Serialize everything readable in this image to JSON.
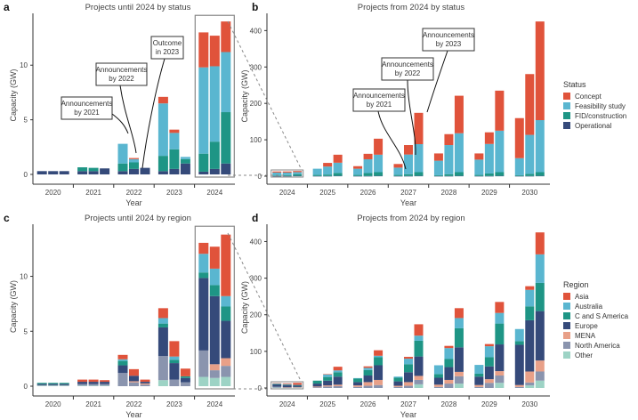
{
  "chart_data": [
    {
      "id": "a",
      "type": "bar",
      "stacked": true,
      "title": "Projects until 2024 by status",
      "xlabel": "Year",
      "ylabel": "Capacity (GW)",
      "ylim": [
        0,
        14.5
      ],
      "yticks": [
        0,
        5,
        10
      ],
      "categories": [
        "2020",
        "2021",
        "2022",
        "2023",
        "2024"
      ],
      "bars_per_category": 3,
      "stack_order": [
        "Operational",
        "FID/construction",
        "Feasibility study",
        "Concept"
      ],
      "bars": [
        {
          "category": "2020",
          "values": [
            0.3,
            0,
            0,
            0
          ]
        },
        {
          "category": "2020",
          "values": [
            0.3,
            0,
            0,
            0
          ]
        },
        {
          "category": "2020",
          "values": [
            0.3,
            0,
            0,
            0
          ]
        },
        {
          "category": "2021",
          "values": [
            0.3,
            0.35,
            0,
            0
          ]
        },
        {
          "category": "2021",
          "values": [
            0.3,
            0.3,
            0,
            0
          ]
        },
        {
          "category": "2021",
          "values": [
            0.55,
            0,
            0,
            0
          ]
        },
        {
          "category": "2022",
          "values": [
            0.3,
            0.7,
            1.8,
            0
          ]
        },
        {
          "category": "2022",
          "values": [
            0.5,
            0.6,
            0.3,
            0.1
          ]
        },
        {
          "category": "2022",
          "values": [
            0.6,
            0,
            0,
            0
          ]
        },
        {
          "category": "2023",
          "values": [
            0.3,
            1.4,
            4.8,
            0.6
          ]
        },
        {
          "category": "2023",
          "values": [
            0.5,
            1.8,
            1.5,
            0.3
          ]
        },
        {
          "category": "2023",
          "values": [
            1.0,
            0.4,
            0.2,
            0
          ]
        },
        {
          "category": "2024",
          "values": [
            0.25,
            1.65,
            7.9,
            3.2
          ]
        },
        {
          "category": "2024",
          "values": [
            0.5,
            2.5,
            6.9,
            2.8
          ]
        },
        {
          "category": "2024",
          "values": [
            1.0,
            4.7,
            5.5,
            2.8
          ]
        }
      ],
      "annotations": [
        {
          "text": [
            "Announcements",
            "by 2021"
          ]
        },
        {
          "text": [
            "Announcements",
            "by 2022"
          ]
        },
        {
          "text": [
            "Outcome",
            "in 2023"
          ]
        }
      ]
    },
    {
      "id": "b",
      "type": "bar",
      "stacked": true,
      "title": "Projects from 2024 by status",
      "xlabel": "Year",
      "ylabel": "",
      "ylim": [
        0,
        440
      ],
      "yticks": [
        0,
        100,
        200,
        300,
        400
      ],
      "categories": [
        "2024",
        "2025",
        "2026",
        "2027",
        "2028",
        "2029",
        "2030"
      ],
      "bars_per_category": 3,
      "stack_order": [
        "Operational",
        "FID/construction",
        "Feasibility study",
        "Concept"
      ],
      "bars": [
        {
          "category": "2024",
          "values": [
            0.3,
            1.7,
            8,
            3
          ]
        },
        {
          "category": "2024",
          "values": [
            0.5,
            2.5,
            7,
            3
          ]
        },
        {
          "category": "2024",
          "values": [
            1,
            4.7,
            5.5,
            3
          ]
        },
        {
          "category": "2025",
          "values": [
            0.5,
            3,
            17,
            0
          ]
        },
        {
          "category": "2025",
          "values": [
            0.5,
            4,
            22,
            10
          ]
        },
        {
          "category": "2025",
          "values": [
            1,
            8,
            28,
            22
          ]
        },
        {
          "category": "2026",
          "values": [
            0.5,
            3,
            17,
            7
          ]
        },
        {
          "category": "2026",
          "values": [
            0.5,
            8,
            38,
            15
          ]
        },
        {
          "category": "2026",
          "values": [
            1,
            10,
            48,
            44
          ]
        },
        {
          "category": "2027",
          "values": [
            0.5,
            3,
            20,
            10
          ]
        },
        {
          "category": "2027",
          "values": [
            0.5,
            5,
            54,
            26
          ]
        },
        {
          "category": "2027",
          "values": [
            1,
            10,
            77,
            86
          ]
        },
        {
          "category": "2028",
          "values": [
            0.5,
            2,
            40,
            20
          ]
        },
        {
          "category": "2028",
          "values": [
            0.5,
            5,
            80,
            30
          ]
        },
        {
          "category": "2028",
          "values": [
            1,
            10,
            107,
            103
          ]
        },
        {
          "category": "2029",
          "values": [
            0.5,
            3,
            42,
            17
          ]
        },
        {
          "category": "2029",
          "values": [
            0.5,
            7,
            81,
            32
          ]
        },
        {
          "category": "2029",
          "values": [
            1,
            10,
            114,
            110
          ]
        },
        {
          "category": "2030",
          "values": [
            0.5,
            2,
            47,
            110
          ]
        },
        {
          "category": "2030",
          "values": [
            0.5,
            6,
            107,
            167
          ]
        },
        {
          "category": "2030",
          "values": [
            1,
            10,
            143,
            271
          ]
        }
      ],
      "annotations": [
        {
          "text": [
            "Announcements",
            "by 2021"
          ]
        },
        {
          "text": [
            "Announcements",
            "by 2022"
          ]
        },
        {
          "text": [
            "Announcements",
            "by 2023"
          ]
        }
      ]
    },
    {
      "id": "c",
      "type": "bar",
      "stacked": true,
      "title": "Projects until 2024 by region",
      "xlabel": "Year",
      "ylabel": "Capacity (GW)",
      "ylim": [
        0,
        14.5
      ],
      "yticks": [
        0,
        5,
        10
      ],
      "categories": [
        "2020",
        "2021",
        "2022",
        "2023",
        "2024"
      ],
      "bars_per_category": 3,
      "stack_order": [
        "Other",
        "North America",
        "MENA",
        "Europe",
        "C and S America",
        "Australia",
        "Asia"
      ],
      "bars": [
        {
          "category": "2020",
          "values": [
            0.05,
            0.05,
            0,
            0.1,
            0.1,
            0,
            0
          ]
        },
        {
          "category": "2020",
          "values": [
            0.05,
            0.05,
            0,
            0.1,
            0.1,
            0,
            0
          ]
        },
        {
          "category": "2020",
          "values": [
            0.05,
            0.05,
            0,
            0.1,
            0.1,
            0,
            0
          ]
        },
        {
          "category": "2021",
          "values": [
            0.05,
            0.15,
            0,
            0.2,
            0,
            0,
            0.2
          ]
        },
        {
          "category": "2021",
          "values": [
            0.05,
            0.15,
            0,
            0.2,
            0,
            0,
            0.2
          ]
        },
        {
          "category": "2021",
          "values": [
            0.05,
            0.15,
            0,
            0.2,
            0,
            0,
            0.15
          ]
        },
        {
          "category": "2022",
          "values": [
            0,
            1.2,
            0,
            0.7,
            0.4,
            0.15,
            0.4
          ]
        },
        {
          "category": "2022",
          "values": [
            0,
            0.35,
            0.1,
            0.5,
            0,
            0,
            0.6
          ]
        },
        {
          "category": "2022",
          "values": [
            0,
            0.15,
            0.1,
            0.15,
            0,
            0,
            0.2
          ]
        },
        {
          "category": "2023",
          "values": [
            0.55,
            2.2,
            0,
            2.6,
            0.35,
            0.5,
            0.9
          ]
        },
        {
          "category": "2023",
          "values": [
            0,
            0.6,
            0,
            1.5,
            0.3,
            0.3,
            1.4
          ]
        },
        {
          "category": "2023",
          "values": [
            0,
            0.35,
            0,
            0.4,
            0.15,
            0,
            0.7
          ]
        },
        {
          "category": "2024",
          "values": [
            0.85,
            2.4,
            0,
            6.6,
            0.5,
            1.7,
            1.0
          ]
        },
        {
          "category": "2024",
          "values": [
            0.75,
            0.7,
            0.55,
            6.2,
            1.0,
            1.5,
            2.0
          ]
        },
        {
          "category": "2024",
          "values": [
            0.85,
            1.0,
            0.7,
            3.4,
            1.3,
            0.95,
            5.6
          ]
        }
      ]
    },
    {
      "id": "d",
      "type": "bar",
      "stacked": true,
      "title": "Projects from 2024 by region",
      "xlabel": "Year",
      "ylabel": "",
      "ylim": [
        0,
        440
      ],
      "yticks": [
        0,
        100,
        200,
        300,
        400
      ],
      "categories": [
        "2024",
        "2025",
        "2026",
        "2027",
        "2028",
        "2029",
        "2030"
      ],
      "bars_per_category": 3,
      "stack_order": [
        "Other",
        "North America",
        "MENA",
        "Europe",
        "C and S America",
        "Australia",
        "Asia"
      ],
      "bars": [
        {
          "category": "2024",
          "values": [
            1,
            2.5,
            0,
            6.5,
            0.5,
            1.5,
            1
          ]
        },
        {
          "category": "2024",
          "values": [
            0.8,
            0.7,
            0.5,
            6,
            1,
            1.5,
            2
          ]
        },
        {
          "category": "2024",
          "values": [
            0.9,
            1,
            0.7,
            3.5,
            1.3,
            1,
            5.5
          ]
        },
        {
          "category": "2025",
          "values": [
            0,
            2,
            2,
            8,
            8,
            0,
            0
          ]
        },
        {
          "category": "2025",
          "values": [
            0,
            4,
            3,
            13,
            10,
            7,
            1
          ]
        },
        {
          "category": "2025",
          "values": [
            0,
            5,
            4,
            22,
            12,
            5,
            10
          ]
        },
        {
          "category": "2026",
          "values": [
            0,
            3,
            4,
            9,
            10,
            1,
            0
          ]
        },
        {
          "category": "2026",
          "values": [
            0,
            6,
            10,
            18,
            15,
            6,
            4
          ]
        },
        {
          "category": "2026",
          "values": [
            0,
            8,
            14,
            40,
            22,
            4,
            15
          ]
        },
        {
          "category": "2027",
          "values": [
            0,
            3,
            3,
            12,
            10,
            3,
            0
          ]
        },
        {
          "category": "2027",
          "values": [
            0,
            6,
            10,
            27,
            22,
            15,
            5
          ]
        },
        {
          "category": "2027",
          "values": [
            10,
            12,
            11,
            53,
            43,
            14,
            31
          ]
        },
        {
          "category": "2028",
          "values": [
            0,
            3,
            6,
            19,
            10,
            24,
            0
          ]
        },
        {
          "category": "2028",
          "values": [
            0,
            12,
            10,
            35,
            22,
            30,
            6
          ]
        },
        {
          "category": "2028",
          "values": [
            12,
            20,
            12,
            67,
            52,
            28,
            27
          ]
        },
        {
          "category": "2029",
          "values": [
            0,
            3,
            5,
            23,
            8,
            24,
            0
          ]
        },
        {
          "category": "2029",
          "values": [
            0,
            14,
            10,
            35,
            25,
            30,
            6
          ]
        },
        {
          "category": "2029",
          "values": [
            14,
            20,
            12,
            73,
            57,
            29,
            30
          ]
        },
        {
          "category": "2030",
          "values": [
            0,
            3,
            5,
            110,
            10,
            33,
            0
          ]
        },
        {
          "category": "2030",
          "values": [
            7,
            8,
            30,
            140,
            38,
            45,
            10
          ]
        },
        {
          "category": "2030",
          "values": [
            20,
            25,
            30,
            135,
            77,
            78,
            60
          ]
        }
      ]
    }
  ],
  "legends": {
    "status": {
      "title": "Status",
      "items": [
        {
          "label": "Concept",
          "color": "#e0533b"
        },
        {
          "label": "Feasibility study",
          "color": "#5ab6d0"
        },
        {
          "label": "FID/construction",
          "color": "#1e9585"
        },
        {
          "label": "Operational",
          "color": "#354a7a"
        }
      ]
    },
    "region": {
      "title": "Region",
      "items": [
        {
          "label": "Asia",
          "color": "#e0533b"
        },
        {
          "label": "Australia",
          "color": "#5ab6d0"
        },
        {
          "label": "C and S America",
          "color": "#1e9585"
        },
        {
          "label": "Europe",
          "color": "#354a7a"
        },
        {
          "label": "MENA",
          "color": "#e8a088"
        },
        {
          "label": "North America",
          "color": "#8a94ae"
        },
        {
          "label": "Other",
          "color": "#9dd3c5"
        }
      ]
    }
  },
  "panel_letters": [
    "a",
    "b",
    "c",
    "d"
  ]
}
